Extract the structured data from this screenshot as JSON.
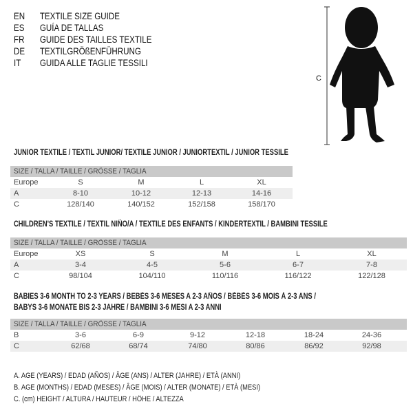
{
  "languages": [
    {
      "code": "EN",
      "text": "TEXTILE SIZE GUIDE"
    },
    {
      "code": "ES",
      "text": "GUÍA DE TALLAS"
    },
    {
      "code": "FR",
      "text": "GUIDE DES TAILLES TEXTILE"
    },
    {
      "code": "DE",
      "text": "TEXTILGRÖßENFÜHRUNG"
    },
    {
      "code": "IT",
      "text": "GUIDA ALLE TAGLIE TESSILI"
    }
  ],
  "figure": {
    "measure_label": "C",
    "icon": "baby-silhouette"
  },
  "size_header": "SIZE / TALLA / TAILLE / GRÖSSE / TAGLIA",
  "junior": {
    "title": "JUNIOR TEXTILE / TEXTIL JUNIOR/ TEXTILE JUNIOR / JUNIORTEXTIL / JUNIOR TESSILE",
    "rows": [
      {
        "label": "Europe",
        "values": [
          "S",
          "M",
          "L",
          "XL"
        ]
      },
      {
        "label": "A",
        "values": [
          "8-10",
          "10-12",
          "12-13",
          "14-16"
        ]
      },
      {
        "label": "C",
        "values": [
          "128/140",
          "140/152",
          "152/158",
          "158/170"
        ]
      }
    ]
  },
  "children": {
    "title": "CHILDREN'S TEXTILE / TEXTIL NIÑO/A / TEXTILE DES ENFANTS / KINDERTEXTIL / BAMBINI TESSILE",
    "rows": [
      {
        "label": "Europe",
        "values": [
          "XS",
          "S",
          "M",
          "L",
          "XL"
        ]
      },
      {
        "label": "A",
        "values": [
          "3-4",
          "4-5",
          "5-6",
          "6-7",
          "7-8"
        ]
      },
      {
        "label": "C",
        "values": [
          "98/104",
          "104/110",
          "110/116",
          "116/122",
          "122/128"
        ]
      }
    ]
  },
  "babies": {
    "title_line1": "BABIES 3-6 MONTH TO 2-3 YEARS / BEBÉS 3-6 MESES A 2-3 AÑOS / BÉBÉS 3-6 MOIS À 2-3 ANS /",
    "title_line2": "BABYS 3-6 MONATE BIS 2-3 JAHRE / BAMBINI 3-6 MESI A 2-3 ANNI",
    "rows": [
      {
        "label": "B",
        "values": [
          "3-6",
          "6-9",
          "9-12",
          "12-18",
          "18-24",
          "24-36"
        ]
      },
      {
        "label": "C",
        "values": [
          "62/68",
          "68/74",
          "74/80",
          "80/86",
          "86/92",
          "92/98"
        ]
      }
    ]
  },
  "legend": [
    "A. AGE (YEARS) / EDAD (AÑOS) / ÂGE (ANS) / ALTER (JAHRE) / ETÀ (ANNI)",
    "B. AGE (MONTHS) / EDAD (MESES) / ÂGE (MOIS) / ALTER (MONATE) / ETÀ (MESI)",
    "C. (cm) HEIGHT / ALTURA / HAUTEUR / HÖHE / ALTEZZA"
  ]
}
